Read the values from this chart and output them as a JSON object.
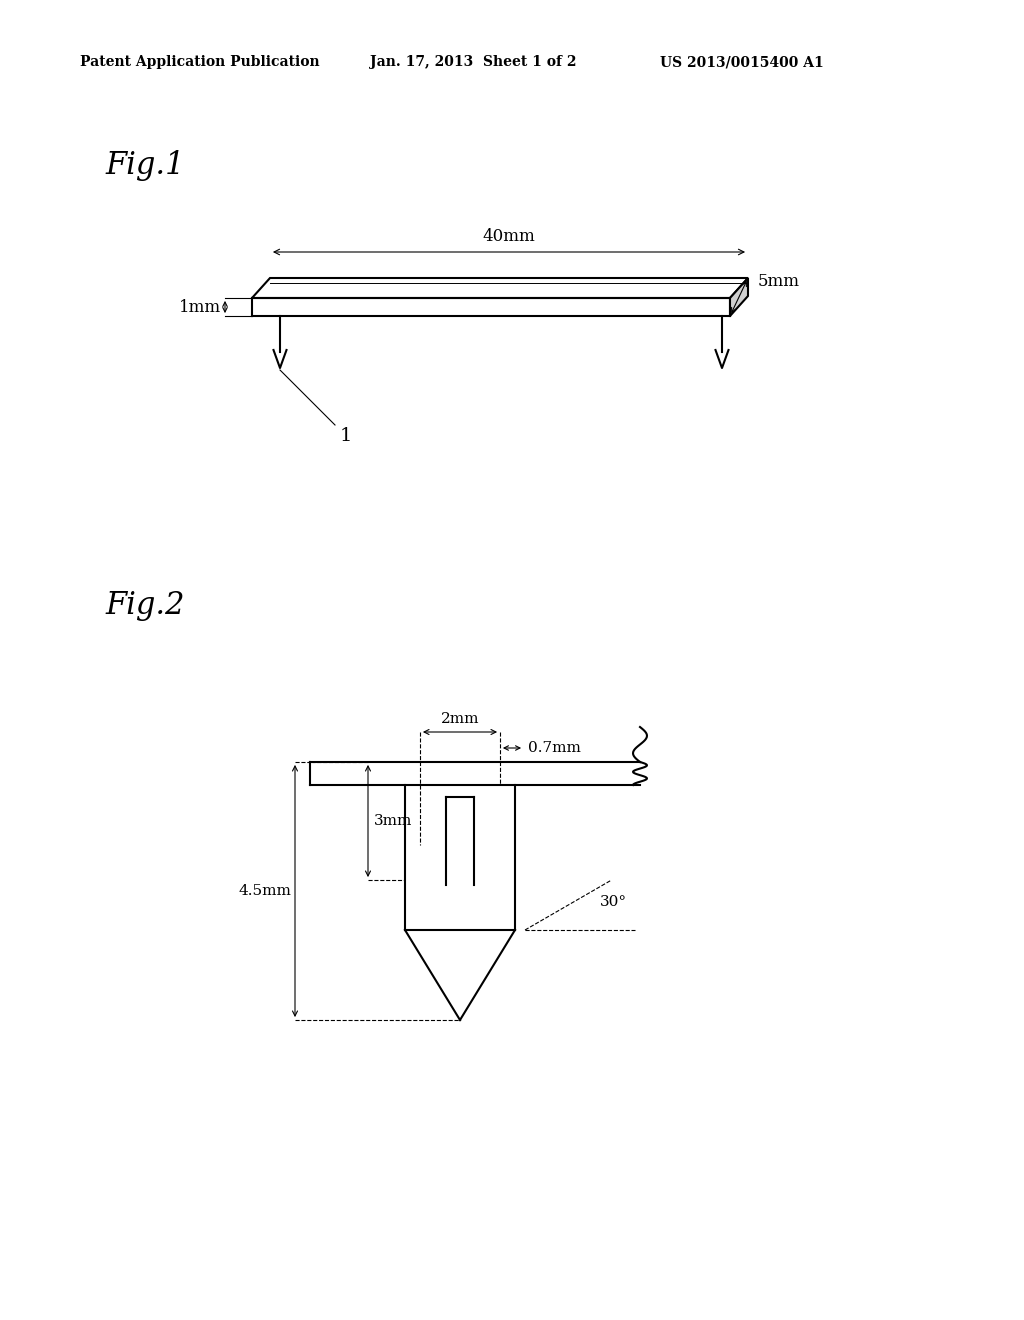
{
  "bg_color": "#ffffff",
  "header_left": "Patent Application Publication",
  "header_mid": "Jan. 17, 2013  Sheet 1 of 2",
  "header_right": "US 2013/0015400 A1",
  "fig1_label": "Fig.1",
  "fig2_label": "Fig.2",
  "fig1_dim_40mm": "40mm",
  "fig1_dim_1mm": "1mm",
  "fig1_dim_5mm": "5mm",
  "fig1_label_1": "1",
  "fig2_dim_2mm": "2mm",
  "fig2_dim_07mm": "0.7mm",
  "fig2_dim_3mm": "3mm",
  "fig2_dim_45mm": "4.5mm",
  "fig2_dim_30deg": "30°",
  "line_color": "#000000",
  "line_width": 1.5,
  "thin_line": 0.8
}
